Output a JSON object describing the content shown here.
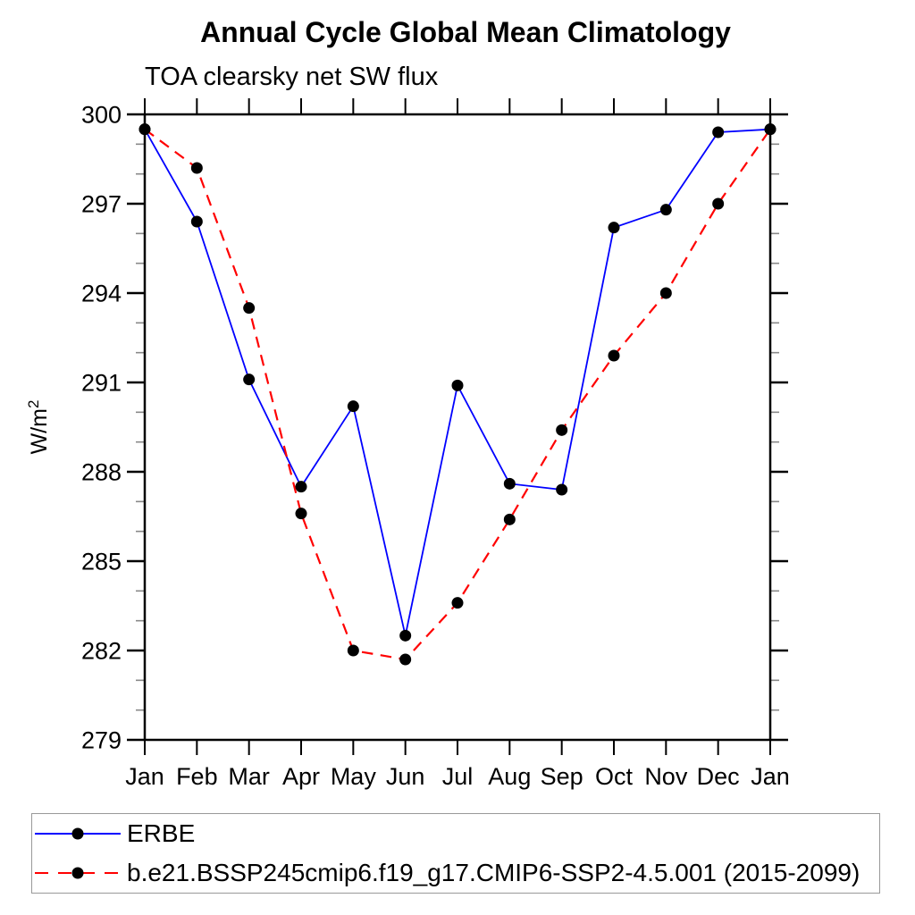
{
  "colors": {
    "erbe_line": "#0000ff",
    "model_line": "#ff0000",
    "marker": "#000000",
    "axis": "#000000",
    "minor_tick": "#888888",
    "legend_border": "#999999"
  },
  "y_axis": {
    "label": "W/m",
    "label_sup": "2"
  },
  "chart_data": {
    "type": "line",
    "title": "Annual Cycle Global Mean Climatology",
    "subtitle": "TOA clearsky net SW flux",
    "ylabel": "W/m²",
    "xlabel": "",
    "categories": [
      "Jan",
      "Feb",
      "Mar",
      "Apr",
      "May",
      "Jun",
      "Jul",
      "Aug",
      "Sep",
      "Oct",
      "Nov",
      "Dec",
      "Jan"
    ],
    "ylim": [
      279,
      300
    ],
    "yticks": [
      279,
      282,
      285,
      288,
      291,
      294,
      297,
      300
    ],
    "y_minor_step": 1,
    "grid": false,
    "legend_position": "bottom-left",
    "series": [
      {
        "name": "ERBE",
        "color": "#0000ff",
        "line_style": "solid",
        "marker": "circle",
        "marker_color": "#000000",
        "values": [
          299.5,
          296.4,
          291.1,
          287.5,
          290.2,
          282.5,
          290.9,
          287.6,
          287.4,
          296.2,
          296.8,
          299.4,
          299.5
        ]
      },
      {
        "name": "b.e21.BSSP245cmip6.f19_g17.CMIP6-SSP2-4.5.001 (2015-2099)",
        "color": "#ff0000",
        "line_style": "dashed",
        "marker": "circle",
        "marker_color": "#000000",
        "values": [
          299.5,
          298.2,
          293.5,
          286.6,
          282.0,
          281.7,
          283.6,
          286.4,
          289.4,
          291.9,
          294.0,
          297.0,
          299.5
        ]
      }
    ]
  }
}
